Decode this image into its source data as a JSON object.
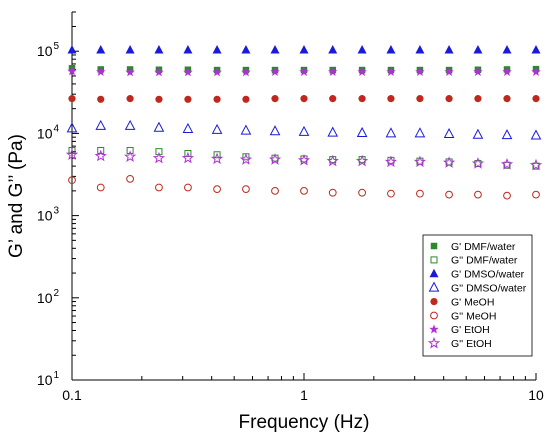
{
  "chart_data": {
    "type": "scatter",
    "xlabel": "Frequency (Hz)",
    "ylabel": "G’ and G’’ (Pa)",
    "xscale": "log",
    "yscale": "log",
    "xlim": [
      0.1,
      10
    ],
    "ylim": [
      10,
      300000
    ],
    "x_tick_values": [
      0.1,
      1,
      10
    ],
    "x_tick_labels": [
      "0.1",
      "1",
      "10"
    ],
    "y_tick_values": [
      10,
      100,
      1000,
      10000,
      100000
    ],
    "y_tick_labels": [
      "10",
      "10",
      "10",
      "10",
      "10"
    ],
    "y_tick_exponents": [
      "1",
      "2",
      "3",
      "4",
      "5"
    ],
    "legend_position": "bottom-right",
    "x": [
      0.1,
      0.133,
      0.178,
      0.237,
      0.316,
      0.422,
      0.562,
      0.75,
      1.0,
      1.33,
      1.78,
      2.37,
      3.16,
      4.22,
      5.62,
      7.5,
      10.0
    ],
    "series": [
      {
        "name": "G' DMF/water",
        "marker": "square",
        "filled": true,
        "color": "#2a8a2a",
        "values": [
          62000,
          60000,
          60000,
          59500,
          59500,
          59000,
          59000,
          59000,
          59000,
          59000,
          59000,
          59000,
          59000,
          59000,
          59500,
          60000,
          60500
        ]
      },
      {
        "name": "G'' DMF/water",
        "marker": "square",
        "filled": false,
        "color": "#2a8a2a",
        "values": [
          6200,
          6200,
          6200,
          6000,
          5700,
          5500,
          5200,
          5000,
          4900,
          4800,
          4800,
          4700,
          4600,
          4500,
          4300,
          4100,
          4000
        ]
      },
      {
        "name": "G' DMSO/water",
        "marker": "triangle",
        "filled": true,
        "color": "#1a1adb",
        "values": [
          103000,
          103000,
          103000,
          103000,
          103000,
          103000,
          103000,
          103000,
          103000,
          103000,
          103000,
          103000,
          103000,
          103000,
          103000,
          103000,
          103000
        ]
      },
      {
        "name": "G'' DMSO/water",
        "marker": "triangle",
        "filled": false,
        "color": "#1a1adb",
        "values": [
          11500,
          12300,
          12300,
          11700,
          11300,
          11000,
          10800,
          10600,
          10400,
          10200,
          10100,
          10000,
          10000,
          9800,
          9600,
          9500,
          9400
        ]
      },
      {
        "name": "G' MeOH",
        "marker": "circle",
        "filled": true,
        "color": "#c0281e",
        "values": [
          26500,
          26000,
          26500,
          26000,
          26000,
          26000,
          26000,
          26500,
          26500,
          26500,
          26500,
          26500,
          26500,
          26500,
          26500,
          26500,
          26500
        ]
      },
      {
        "name": "G'' MeOH",
        "marker": "circle",
        "filled": false,
        "color": "#c0281e",
        "values": [
          2700,
          2200,
          2800,
          2200,
          2200,
          2100,
          2100,
          2000,
          2000,
          1900,
          1900,
          1850,
          1850,
          1800,
          1800,
          1750,
          1800
        ]
      },
      {
        "name": "G' EtOH",
        "marker": "star",
        "filled": true,
        "color": "#b030d8",
        "values": [
          57000,
          56000,
          55500,
          55500,
          55500,
          55500,
          55500,
          56000,
          56000,
          56000,
          56000,
          56000,
          56000,
          56000,
          56000,
          56000,
          56000
        ]
      },
      {
        "name": "G'' EtOH",
        "marker": "star",
        "filled": false,
        "color": "#b030d8",
        "values": [
          5500,
          5300,
          5200,
          5000,
          5000,
          4900,
          4800,
          4800,
          4700,
          4600,
          4600,
          4500,
          4500,
          4400,
          4300,
          4200,
          4100
        ]
      }
    ]
  }
}
